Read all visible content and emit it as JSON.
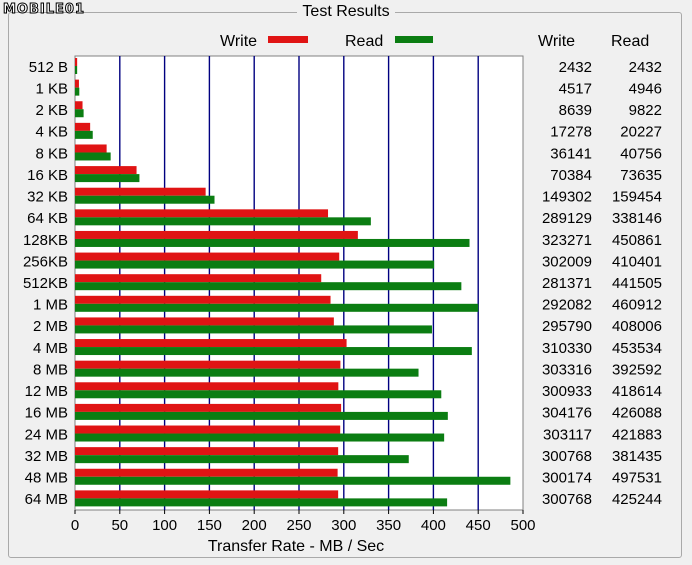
{
  "window": {
    "group_title": "Test Results",
    "logo_text": "MOBILE01"
  },
  "colors": {
    "write": "#e01414",
    "read": "#0b7d12",
    "grid": "#000080"
  },
  "table": {
    "write_header": "Write",
    "read_header": "Read"
  },
  "chart_data": {
    "type": "bar",
    "orientation": "horizontal",
    "xlabel": "Transfer Rate - MB / Sec",
    "xlim": [
      0,
      500
    ],
    "xticks": [
      0,
      50,
      100,
      150,
      200,
      250,
      300,
      350,
      400,
      450,
      500
    ],
    "grid": true,
    "legend": "top",
    "categories": [
      "512 B",
      "1 KB",
      "2 KB",
      "4 KB",
      "8 KB",
      "16 KB",
      "32 KB",
      "64 KB",
      "128KB",
      "256KB",
      "512KB",
      "1 MB",
      "2 MB",
      "4 MB",
      "8 MB",
      "12 MB",
      "16 MB",
      "24 MB",
      "32 MB",
      "48 MB",
      "64 MB"
    ],
    "series": [
      {
        "name": "Write",
        "values": [
          2.4,
          4.4,
          8.4,
          16.9,
          35.3,
          68.7,
          145.8,
          282.4,
          315.7,
          294.9,
          274.8,
          285.2,
          288.9,
          303.1,
          296.2,
          293.9,
          297.0,
          296.0,
          293.7,
          293.1,
          293.7
        ],
        "table_values": [
          "2432",
          "4517",
          "8639",
          "17278",
          "36141",
          "70384",
          "149302",
          "289129",
          "323271",
          "302009",
          "281371",
          "292082",
          "295790",
          "310330",
          "303316",
          "300933",
          "304176",
          "303117",
          "300768",
          "300174",
          "300768"
        ]
      },
      {
        "name": "Read",
        "values": [
          2.4,
          4.8,
          9.6,
          19.8,
          39.8,
          71.9,
          155.7,
          330.2,
          440.3,
          400.8,
          431.2,
          450.1,
          398.4,
          442.9,
          383.4,
          408.8,
          416.1,
          412.0,
          372.5,
          485.9,
          415.3
        ],
        "table_values": [
          "2432",
          "4946",
          "9822",
          "20227",
          "40756",
          "73635",
          "159454",
          "338146",
          "450861",
          "410401",
          "441505",
          "460912",
          "408006",
          "453534",
          "392592",
          "418614",
          "426088",
          "421883",
          "381435",
          "497531",
          "425244"
        ]
      }
    ]
  }
}
